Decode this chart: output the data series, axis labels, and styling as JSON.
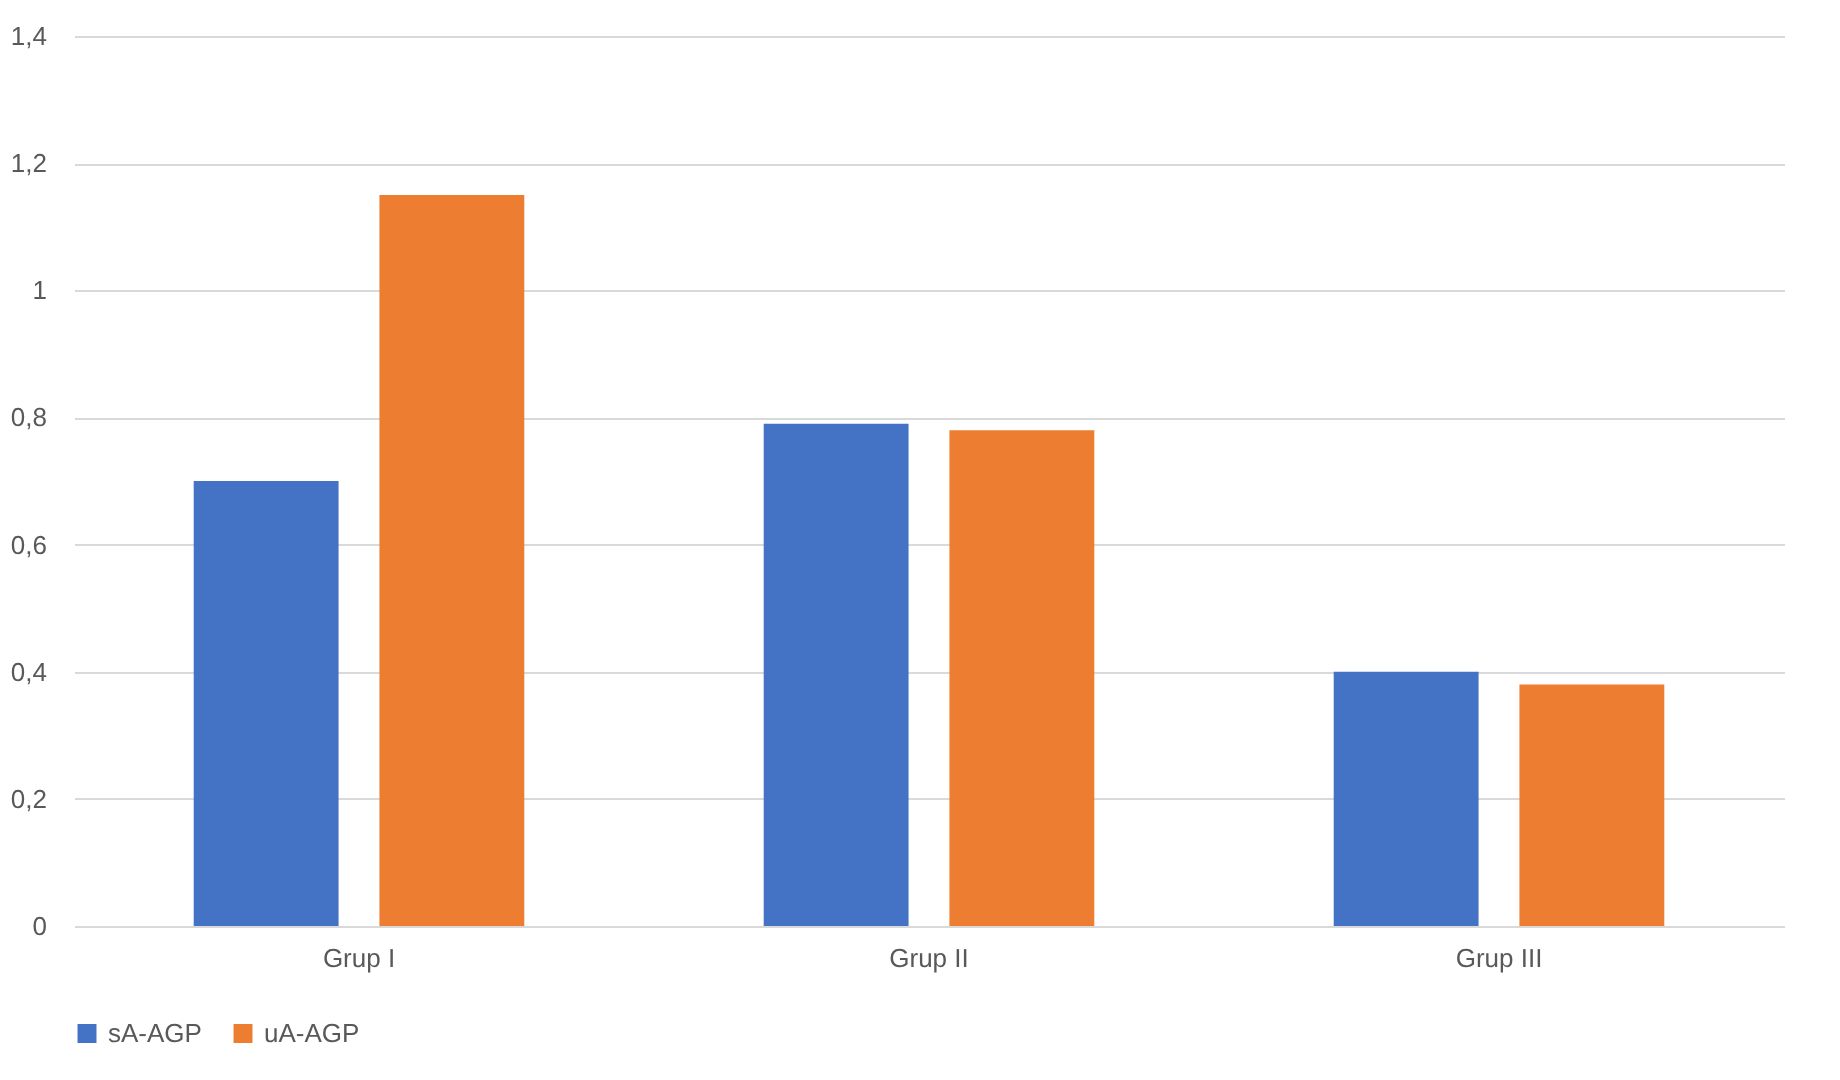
{
  "chart_data": {
    "type": "bar",
    "categories": [
      "Grup I",
      "Grup II",
      "Grup III"
    ],
    "series": [
      {
        "name": "sA-AGP",
        "color": "#4472c4",
        "values": [
          0.7,
          0.79,
          0.4
        ]
      },
      {
        "name": "uA-AGP",
        "color": "#ed7d31",
        "values": [
          1.15,
          0.78,
          0.38
        ]
      }
    ],
    "ylim": [
      0,
      1.4
    ],
    "yticks": [
      0,
      {
        "value": 0.2,
        "label": "0,2"
      },
      {
        "value": 0.4,
        "label": "0,4"
      },
      {
        "value": 0.6,
        "label": "0,6"
      },
      {
        "value": 0.8,
        "label": "0,8"
      },
      1,
      {
        "value": 1.2,
        "label": "1,2"
      },
      {
        "value": 1.4,
        "label": "1,4"
      }
    ],
    "grid": "y",
    "legend": "bottom"
  }
}
